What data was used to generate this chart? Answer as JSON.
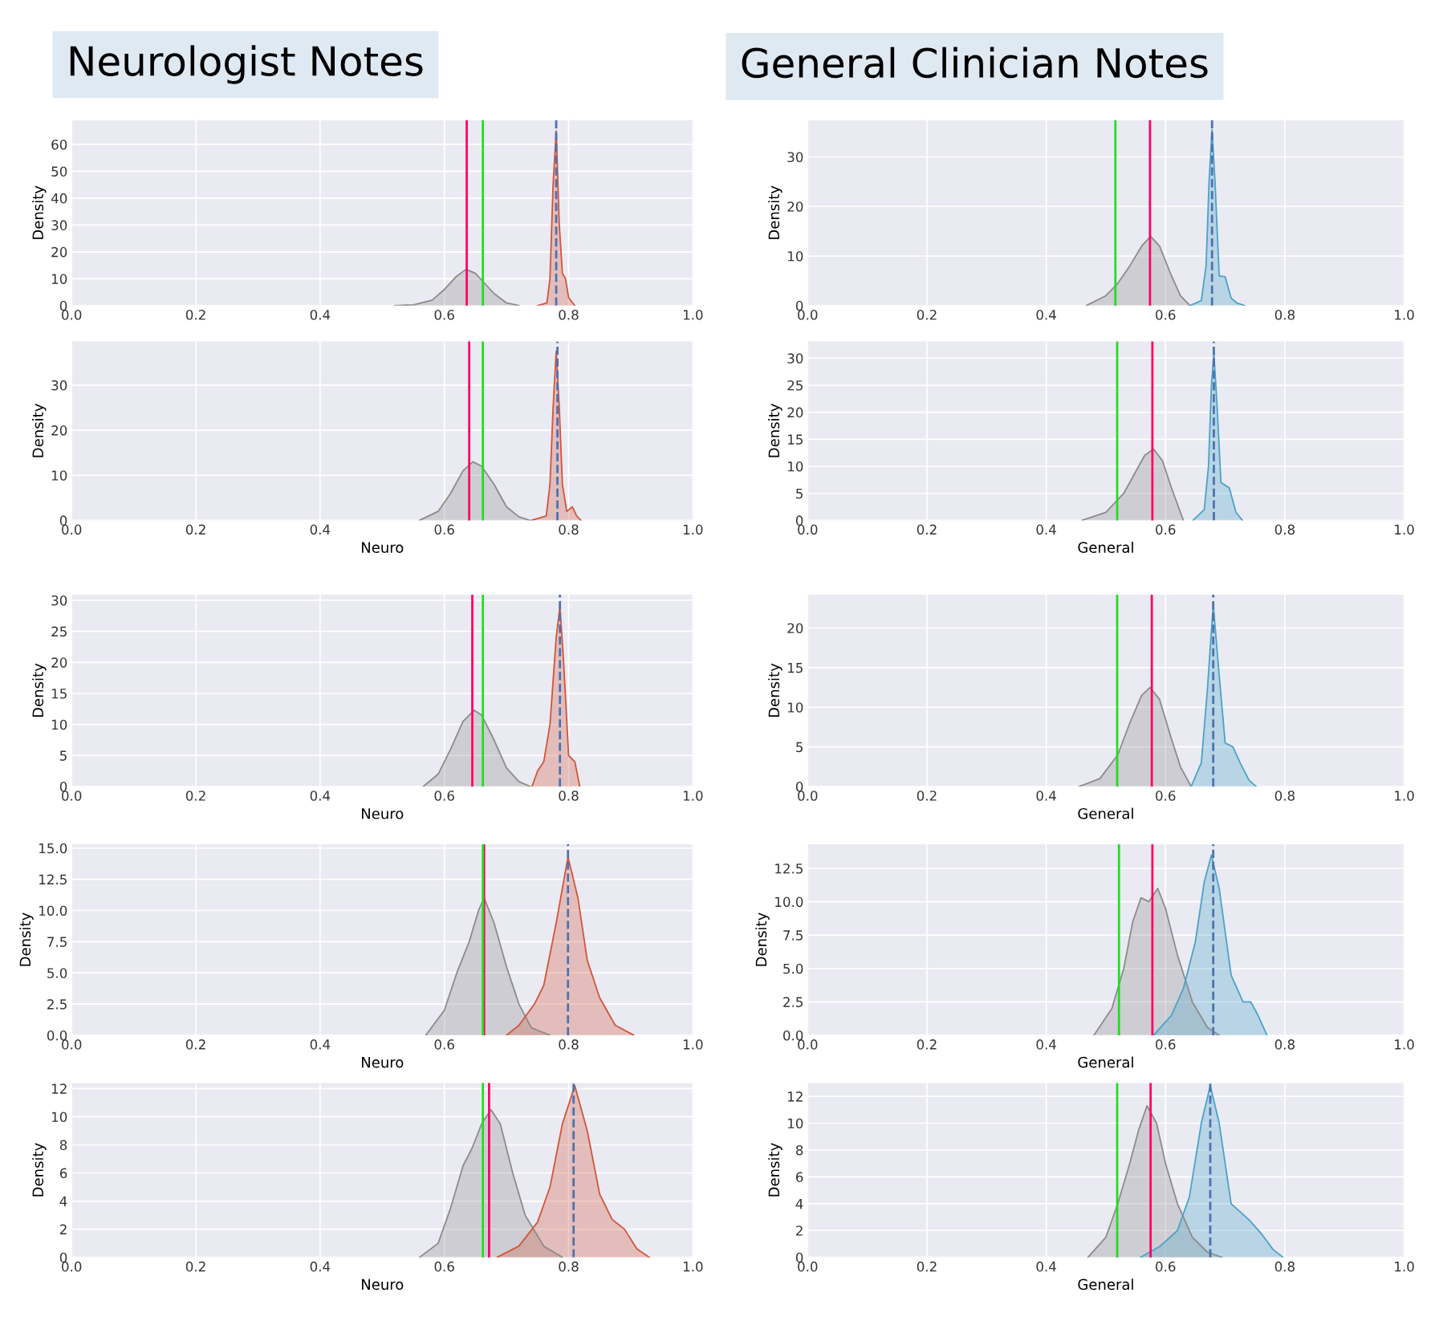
{
  "chart_data": [
    {
      "type": "area",
      "title": "Neurologist Notes",
      "ylabel": "Density",
      "xlim": [
        0,
        1
      ],
      "xticks": [
        {
          "value": 0,
          "label": "0.0"
        },
        {
          "value": 0.2,
          "label": "0.2"
        },
        {
          "value": 0.4,
          "label": "0.4"
        },
        {
          "value": 0.6,
          "label": "0.6"
        },
        {
          "value": 0.8,
          "label": "0.8"
        },
        {
          "value": 1,
          "label": "1.0"
        }
      ],
      "ylim": [
        0,
        69
      ],
      "yticks": [
        0,
        10,
        20,
        30,
        40,
        50,
        60
      ],
      "grid": true,
      "legend": false,
      "series": [
        {
          "color": "#8c8c8c",
          "x": [
            0.52,
            0.55,
            0.58,
            0.6,
            0.62,
            0.635,
            0.65,
            0.66,
            0.68,
            0.7,
            0.72
          ],
          "values": [
            0,
            0.3,
            2,
            6,
            11,
            13.5,
            12,
            9.5,
            4.5,
            1,
            0
          ]
        },
        {
          "color": "#d2553a",
          "x": [
            0.75,
            0.765,
            0.77,
            0.775,
            0.78,
            0.785,
            0.79,
            0.795,
            0.8,
            0.81
          ],
          "values": [
            0,
            1,
            10,
            45,
            65,
            30,
            12,
            10,
            3,
            0
          ]
        }
      ],
      "ref_lines": [
        {
          "axis": "x",
          "value": 0.636,
          "color": "#ff0066",
          "line_style": "solid"
        },
        {
          "axis": "x",
          "value": 0.662,
          "color": "#22dd22",
          "line_style": "solid"
        },
        {
          "axis": "x",
          "value": 0.78,
          "color": "#4c72b0",
          "line_style": "dashed"
        }
      ]
    },
    {
      "type": "area",
      "xlabel": "Neuro",
      "ylabel": "Density",
      "xlim": [
        0,
        1
      ],
      "xticks": [
        {
          "value": 0,
          "label": "0.0"
        },
        {
          "value": 0.2,
          "label": "0.2"
        },
        {
          "value": 0.4,
          "label": "0.4"
        },
        {
          "value": 0.6,
          "label": "0.6"
        },
        {
          "value": 0.8,
          "label": "0.8"
        },
        {
          "value": 1,
          "label": "1.0"
        }
      ],
      "ylim": [
        0,
        39.7
      ],
      "yticks": [
        0,
        10,
        20,
        30
      ],
      "grid": true,
      "legend": false,
      "series": [
        {
          "color": "#8c8c8c",
          "x": [
            0.56,
            0.59,
            0.61,
            0.63,
            0.646,
            0.66,
            0.68,
            0.7,
            0.72,
            0.737
          ],
          "values": [
            0,
            2,
            6,
            11,
            13,
            12,
            8,
            3,
            0.8,
            0
          ]
        },
        {
          "color": "#d2553a",
          "x": [
            0.74,
            0.764,
            0.77,
            0.775,
            0.78,
            0.785,
            0.79,
            0.797,
            0.806,
            0.813,
            0.82
          ],
          "values": [
            0,
            1,
            8,
            25,
            37.5,
            25,
            8,
            2,
            3,
            1,
            0
          ]
        }
      ],
      "ref_lines": [
        {
          "axis": "x",
          "value": 0.64,
          "color": "#ff0066",
          "line_style": "solid"
        },
        {
          "axis": "x",
          "value": 0.662,
          "color": "#22dd22",
          "line_style": "solid"
        },
        {
          "axis": "x",
          "value": 0.782,
          "color": "#4c72b0",
          "line_style": "dashed"
        }
      ]
    },
    {
      "type": "area",
      "xlabel": "Neuro",
      "ylabel": "Density",
      "xlim": [
        0,
        1
      ],
      "xticks": [
        {
          "value": 0,
          "label": "0.0"
        },
        {
          "value": 0.2,
          "label": "0.2"
        },
        {
          "value": 0.4,
          "label": "0.4"
        },
        {
          "value": 0.6,
          "label": "0.6"
        },
        {
          "value": 0.8,
          "label": "0.8"
        },
        {
          "value": 1,
          "label": "1.0"
        }
      ],
      "ylim": [
        0,
        30.9
      ],
      "yticks": [
        0,
        5,
        10,
        15,
        20,
        25,
        30
      ],
      "grid": true,
      "legend": false,
      "series": [
        {
          "color": "#8c8c8c",
          "x": [
            0.566,
            0.59,
            0.61,
            0.63,
            0.648,
            0.66,
            0.68,
            0.7,
            0.72,
            0.738
          ],
          "values": [
            0,
            2,
            6,
            10.5,
            12.3,
            11.5,
            7.5,
            3,
            0.8,
            0
          ]
        },
        {
          "color": "#d2553a",
          "x": [
            0.741,
            0.75,
            0.76,
            0.77,
            0.78,
            0.786,
            0.792,
            0.8,
            0.81,
            0.818
          ],
          "values": [
            0,
            2.5,
            4,
            10,
            24,
            29,
            20,
            5,
            4,
            0
          ]
        }
      ],
      "ref_lines": [
        {
          "axis": "x",
          "value": 0.645,
          "color": "#ff0066",
          "line_style": "solid"
        },
        {
          "axis": "x",
          "value": 0.662,
          "color": "#22dd22",
          "line_style": "solid"
        },
        {
          "axis": "x",
          "value": 0.786,
          "color": "#4c72b0",
          "line_style": "dashed"
        }
      ]
    },
    {
      "type": "area",
      "xlabel": "Neuro",
      "ylabel": "Density",
      "xlim": [
        0,
        1
      ],
      "xticks": [
        {
          "value": 0,
          "label": "0.0"
        },
        {
          "value": 0.2,
          "label": "0.2"
        },
        {
          "value": 0.4,
          "label": "0.4"
        },
        {
          "value": 0.6,
          "label": "0.6"
        },
        {
          "value": 0.8,
          "label": "0.8"
        },
        {
          "value": 1,
          "label": "1.0"
        }
      ],
      "ylim": [
        0,
        15.3
      ],
      "yticks": [
        {
          "value": 0,
          "label": "0.0"
        },
        {
          "value": 2.5,
          "label": "2.5"
        },
        {
          "value": 5,
          "label": "5.0"
        },
        {
          "value": 7.5,
          "label": "7.5"
        },
        {
          "value": 10,
          "label": "10.0"
        },
        {
          "value": 12.5,
          "label": "12.5"
        },
        {
          "value": 15,
          "label": "15.0"
        }
      ],
      "grid": true,
      "legend": false,
      "series": [
        {
          "color": "#8c8c8c",
          "x": [
            0.57,
            0.6,
            0.62,
            0.64,
            0.655,
            0.664,
            0.68,
            0.7,
            0.72,
            0.74,
            0.77
          ],
          "values": [
            0,
            2,
            5,
            7.5,
            10,
            11,
            9,
            5.5,
            2.5,
            0.6,
            0
          ]
        },
        {
          "color": "#d2553a",
          "x": [
            0.7,
            0.72,
            0.745,
            0.76,
            0.78,
            0.799,
            0.815,
            0.83,
            0.85,
            0.875,
            0.905
          ],
          "values": [
            0,
            0.8,
            2.5,
            4,
            9,
            14.3,
            11,
            6,
            3,
            0.8,
            0
          ]
        }
      ],
      "ref_lines": [
        {
          "axis": "x",
          "value": 0.664,
          "color": "#ff0066",
          "line_style": "solid"
        },
        {
          "axis": "x",
          "value": 0.662,
          "color": "#22dd22",
          "line_style": "solid"
        },
        {
          "axis": "x",
          "value": 0.799,
          "color": "#4c72b0",
          "line_style": "dashed"
        }
      ]
    },
    {
      "type": "area",
      "xlabel": "Neuro",
      "ylabel": "Density",
      "xlim": [
        0,
        1
      ],
      "xticks": [
        {
          "value": 0,
          "label": "0.0"
        },
        {
          "value": 0.2,
          "label": "0.2"
        },
        {
          "value": 0.4,
          "label": "0.4"
        },
        {
          "value": 0.6,
          "label": "0.6"
        },
        {
          "value": 0.8,
          "label": "0.8"
        },
        {
          "value": 1,
          "label": "1.0"
        }
      ],
      "ylim": [
        0,
        12.4
      ],
      "yticks": [
        0,
        2,
        4,
        6,
        8,
        10,
        12
      ],
      "grid": true,
      "legend": false,
      "series": [
        {
          "color": "#8c8c8c",
          "x": [
            0.56,
            0.59,
            0.61,
            0.63,
            0.645,
            0.66,
            0.675,
            0.69,
            0.71,
            0.73,
            0.76,
            0.79
          ],
          "values": [
            0,
            1,
            3.5,
            6.5,
            7.8,
            9.5,
            10.5,
            9.5,
            6,
            3,
            0.8,
            0
          ]
        },
        {
          "color": "#d2553a",
          "x": [
            0.685,
            0.72,
            0.75,
            0.77,
            0.79,
            0.81,
            0.83,
            0.85,
            0.87,
            0.89,
            0.91,
            0.93
          ],
          "values": [
            0,
            0.8,
            2.5,
            5,
            9.5,
            12.2,
            9,
            4.5,
            2.7,
            2,
            0.6,
            0
          ]
        }
      ],
      "ref_lines": [
        {
          "axis": "x",
          "value": 0.672,
          "color": "#ff0066",
          "line_style": "solid"
        },
        {
          "axis": "x",
          "value": 0.662,
          "color": "#22dd22",
          "line_style": "solid"
        },
        {
          "axis": "x",
          "value": 0.808,
          "color": "#4c72b0",
          "line_style": "dashed"
        }
      ]
    },
    {
      "type": "area",
      "title": "General Clinician Notes",
      "ylabel": "Density",
      "xlim": [
        0,
        1
      ],
      "xticks": [
        {
          "value": 0,
          "label": "0.0"
        },
        {
          "value": 0.2,
          "label": "0.2"
        },
        {
          "value": 0.4,
          "label": "0.4"
        },
        {
          "value": 0.6,
          "label": "0.6"
        },
        {
          "value": 0.8,
          "label": "0.8"
        },
        {
          "value": 1,
          "label": "1.0"
        }
      ],
      "ylim": [
        0,
        37.4
      ],
      "yticks": [
        0,
        10,
        20,
        30
      ],
      "grid": true,
      "legend": false,
      "series": [
        {
          "color": "#8c8c8c",
          "x": [
            0.467,
            0.5,
            0.52,
            0.54,
            0.56,
            0.575,
            0.59,
            0.61,
            0.625,
            0.641
          ],
          "values": [
            0,
            2,
            4.5,
            8,
            12,
            14,
            12,
            6,
            2,
            0
          ]
        },
        {
          "color": "#4aa3c8",
          "x": [
            0.641,
            0.66,
            0.668,
            0.673,
            0.678,
            0.683,
            0.69,
            0.7,
            0.71,
            0.72,
            0.733
          ],
          "values": [
            0,
            1,
            8,
            25,
            35.5,
            25,
            6,
            5.8,
            1.5,
            0.5,
            0
          ]
        }
      ],
      "ref_lines": [
        {
          "axis": "x",
          "value": 0.574,
          "color": "#ff0066",
          "line_style": "solid"
        },
        {
          "axis": "x",
          "value": 0.516,
          "color": "#22dd22",
          "line_style": "solid"
        },
        {
          "axis": "x",
          "value": 0.678,
          "color": "#4c72b0",
          "line_style": "dashed"
        }
      ]
    },
    {
      "type": "area",
      "xlabel": "General",
      "ylabel": "Density",
      "xlim": [
        0,
        1
      ],
      "xticks": [
        {
          "value": 0,
          "label": "0.0"
        },
        {
          "value": 0.2,
          "label": "0.2"
        },
        {
          "value": 0.4,
          "label": "0.4"
        },
        {
          "value": 0.6,
          "label": "0.6"
        },
        {
          "value": 0.8,
          "label": "0.8"
        },
        {
          "value": 1,
          "label": "1.0"
        }
      ],
      "ylim": [
        0,
        33.1
      ],
      "yticks": [
        0,
        5,
        10,
        15,
        20,
        25,
        30
      ],
      "grid": true,
      "legend": false,
      "series": [
        {
          "color": "#8c8c8c",
          "x": [
            0.46,
            0.5,
            0.53,
            0.55,
            0.565,
            0.58,
            0.595,
            0.61,
            0.63
          ],
          "values": [
            0,
            1.5,
            5,
            9,
            12,
            13.2,
            11,
            6,
            0
          ]
        },
        {
          "color": "#4aa3c8",
          "x": [
            0.646,
            0.665,
            0.672,
            0.677,
            0.681,
            0.686,
            0.693,
            0.707,
            0.718,
            0.729
          ],
          "values": [
            0,
            2,
            10,
            25,
            31,
            22,
            7,
            6,
            1.5,
            0
          ]
        }
      ],
      "ref_lines": [
        {
          "axis": "x",
          "value": 0.578,
          "color": "#ff0066",
          "line_style": "solid"
        },
        {
          "axis": "x",
          "value": 0.519,
          "color": "#22dd22",
          "line_style": "solid"
        },
        {
          "axis": "x",
          "value": 0.681,
          "color": "#4c72b0",
          "line_style": "dashed"
        }
      ]
    },
    {
      "type": "area",
      "xlabel": "General",
      "ylabel": "Density",
      "xlim": [
        0,
        1
      ],
      "xticks": [
        {
          "value": 0,
          "label": "0.0"
        },
        {
          "value": 0.2,
          "label": "0.2"
        },
        {
          "value": 0.4,
          "label": "0.4"
        },
        {
          "value": 0.6,
          "label": "0.6"
        },
        {
          "value": 0.8,
          "label": "0.8"
        },
        {
          "value": 1,
          "label": "1.0"
        }
      ],
      "ylim": [
        0,
        24.2
      ],
      "yticks": [
        0,
        5,
        10,
        15,
        20
      ],
      "grid": true,
      "legend": false,
      "series": [
        {
          "color": "#8c8c8c",
          "x": [
            0.455,
            0.49,
            0.52,
            0.54,
            0.56,
            0.574,
            0.59,
            0.61,
            0.625,
            0.643
          ],
          "values": [
            0,
            1,
            4,
            8,
            11.5,
            12.5,
            11,
            6,
            2.5,
            0
          ]
        },
        {
          "color": "#4aa3c8",
          "x": [
            0.643,
            0.66,
            0.67,
            0.68,
            0.69,
            0.7,
            0.713,
            0.725,
            0.74,
            0.752
          ],
          "values": [
            0,
            3,
            12,
            23,
            14,
            5.5,
            5,
            3,
            0.8,
            0
          ]
        }
      ],
      "ref_lines": [
        {
          "axis": "x",
          "value": 0.577,
          "color": "#ff0066",
          "line_style": "solid"
        },
        {
          "axis": "x",
          "value": 0.519,
          "color": "#22dd22",
          "line_style": "solid"
        },
        {
          "axis": "x",
          "value": 0.68,
          "color": "#4c72b0",
          "line_style": "dashed"
        }
      ]
    },
    {
      "type": "area",
      "xlabel": "General",
      "ylabel": "Density",
      "xlim": [
        0,
        1
      ],
      "xticks": [
        {
          "value": 0,
          "label": "0.0"
        },
        {
          "value": 0.2,
          "label": "0.2"
        },
        {
          "value": 0.4,
          "label": "0.4"
        },
        {
          "value": 0.6,
          "label": "0.6"
        },
        {
          "value": 0.8,
          "label": "0.8"
        },
        {
          "value": 1,
          "label": "1.0"
        }
      ],
      "ylim": [
        0,
        14.3
      ],
      "yticks": [
        {
          "value": 0,
          "label": "0.0"
        },
        {
          "value": 2.5,
          "label": "2.5"
        },
        {
          "value": 5,
          "label": "5.0"
        },
        {
          "value": 7.5,
          "label": "7.5"
        },
        {
          "value": 10,
          "label": "10.0"
        },
        {
          "value": 12.5,
          "label": "12.5"
        }
      ],
      "grid": true,
      "legend": false,
      "series": [
        {
          "color": "#8c8c8c",
          "x": [
            0.48,
            0.51,
            0.53,
            0.545,
            0.559,
            0.572,
            0.587,
            0.6,
            0.62,
            0.645,
            0.67,
            0.69
          ],
          "values": [
            0,
            2,
            5,
            8.5,
            10.3,
            10,
            11,
            9.5,
            6,
            2.5,
            0.6,
            0
          ]
        },
        {
          "color": "#4aa3c8",
          "x": [
            0.58,
            0.61,
            0.63,
            0.65,
            0.665,
            0.677,
            0.69,
            0.71,
            0.73,
            0.743,
            0.755,
            0.77
          ],
          "values": [
            0,
            1.5,
            3.5,
            7,
            11.5,
            13.5,
            11,
            4.5,
            2.5,
            2.5,
            1.5,
            0
          ]
        }
      ],
      "ref_lines": [
        {
          "axis": "x",
          "value": 0.578,
          "color": "#ff0066",
          "line_style": "solid"
        },
        {
          "axis": "x",
          "value": 0.522,
          "color": "#22dd22",
          "line_style": "solid"
        },
        {
          "axis": "x",
          "value": 0.68,
          "color": "#4c72b0",
          "line_style": "dashed"
        }
      ]
    },
    {
      "type": "area",
      "xlabel": "General",
      "ylabel": "Density",
      "xlim": [
        0,
        1
      ],
      "xticks": [
        {
          "value": 0,
          "label": "0.0"
        },
        {
          "value": 0.2,
          "label": "0.2"
        },
        {
          "value": 0.4,
          "label": "0.4"
        },
        {
          "value": 0.6,
          "label": "0.6"
        },
        {
          "value": 0.8,
          "label": "0.8"
        },
        {
          "value": 1,
          "label": "1.0"
        }
      ],
      "ylim": [
        0,
        13
      ],
      "yticks": [
        0,
        2,
        4,
        6,
        8,
        10,
        12
      ],
      "grid": true,
      "legend": false,
      "series": [
        {
          "color": "#8c8c8c",
          "x": [
            0.47,
            0.5,
            0.52,
            0.54,
            0.555,
            0.569,
            0.585,
            0.6,
            0.62,
            0.645,
            0.67,
            0.695
          ],
          "values": [
            0,
            1.5,
            4,
            7,
            9.5,
            11.3,
            10,
            7,
            4,
            1.5,
            0.4,
            0
          ]
        },
        {
          "color": "#4aa3c8",
          "x": [
            0.558,
            0.59,
            0.62,
            0.64,
            0.66,
            0.675,
            0.69,
            0.71,
            0.74,
            0.76,
            0.78,
            0.797
          ],
          "values": [
            0,
            0.8,
            2,
            4.5,
            10,
            12.8,
            10,
            4,
            2.8,
            1.8,
            0.6,
            0
          ]
        }
      ],
      "ref_lines": [
        {
          "axis": "x",
          "value": 0.575,
          "color": "#ff0066",
          "line_style": "solid"
        },
        {
          "axis": "x",
          "value": 0.519,
          "color": "#22dd22",
          "line_style": "solid"
        },
        {
          "axis": "x",
          "value": 0.675,
          "color": "#4c72b0",
          "line_style": "dashed"
        }
      ]
    }
  ]
}
